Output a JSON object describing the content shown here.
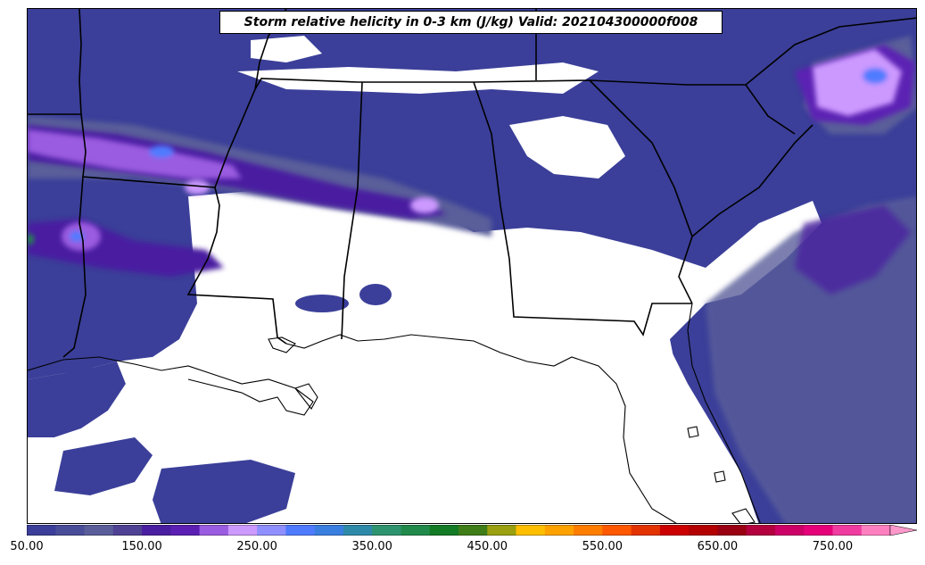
{
  "title": "Storm relative helicity in 0-3 km (J/kg) Valid: 202104300000f008",
  "colorbar": {
    "min": 50,
    "max": 850,
    "step": 25,
    "extend": "max",
    "tick_labels": [
      "50.00",
      "150.00",
      "250.00",
      "350.00",
      "450.00",
      "550.00",
      "650.00",
      "750.00"
    ],
    "colors": [
      "#3b3f99",
      "#4a4d98",
      "#5a5e9a",
      "#4f4193",
      "#4a1ea0",
      "#5b20b3",
      "#9a5ce0",
      "#cc99ff",
      "#8f8fff",
      "#4f7bff",
      "#3a7fe0",
      "#2e8aa8",
      "#2e9470",
      "#218a4a",
      "#137a25",
      "#3f7d18",
      "#9aa010",
      "#ffbf00",
      "#ffa200",
      "#ff7d00",
      "#ff5800",
      "#e33300",
      "#cc0000",
      "#b30000",
      "#990012",
      "#b3003e",
      "#cc0066",
      "#e6007a",
      "#f03ca0",
      "#ff80c0",
      "#ff99cc"
    ]
  },
  "map": {
    "region": "Southeastern United States",
    "layers": [
      "state-borders",
      "coastlines",
      "helicity-contours"
    ],
    "dominant_range": "50-250 J/kg"
  }
}
